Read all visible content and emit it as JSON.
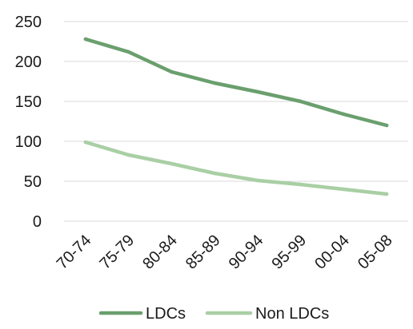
{
  "chart_data": {
    "type": "line",
    "categories": [
      "70-74",
      "75-79",
      "80-84",
      "85-89",
      "90-94",
      "95-99",
      "00-04",
      "05-08"
    ],
    "series": [
      {
        "name": "LDCs",
        "color": "#6a9f6e",
        "values": [
          228,
          212,
          187,
          173,
          162,
          150,
          134,
          120
        ]
      },
      {
        "name": "Non LDCs",
        "color": "#a9cfa4",
        "values": [
          99,
          83,
          72,
          60,
          51,
          46,
          40,
          34
        ]
      }
    ],
    "y_ticks": [
      0,
      50,
      100,
      150,
      200,
      250
    ],
    "ylim": [
      0,
      250
    ],
    "grid": true,
    "legend_position": "bottom"
  }
}
